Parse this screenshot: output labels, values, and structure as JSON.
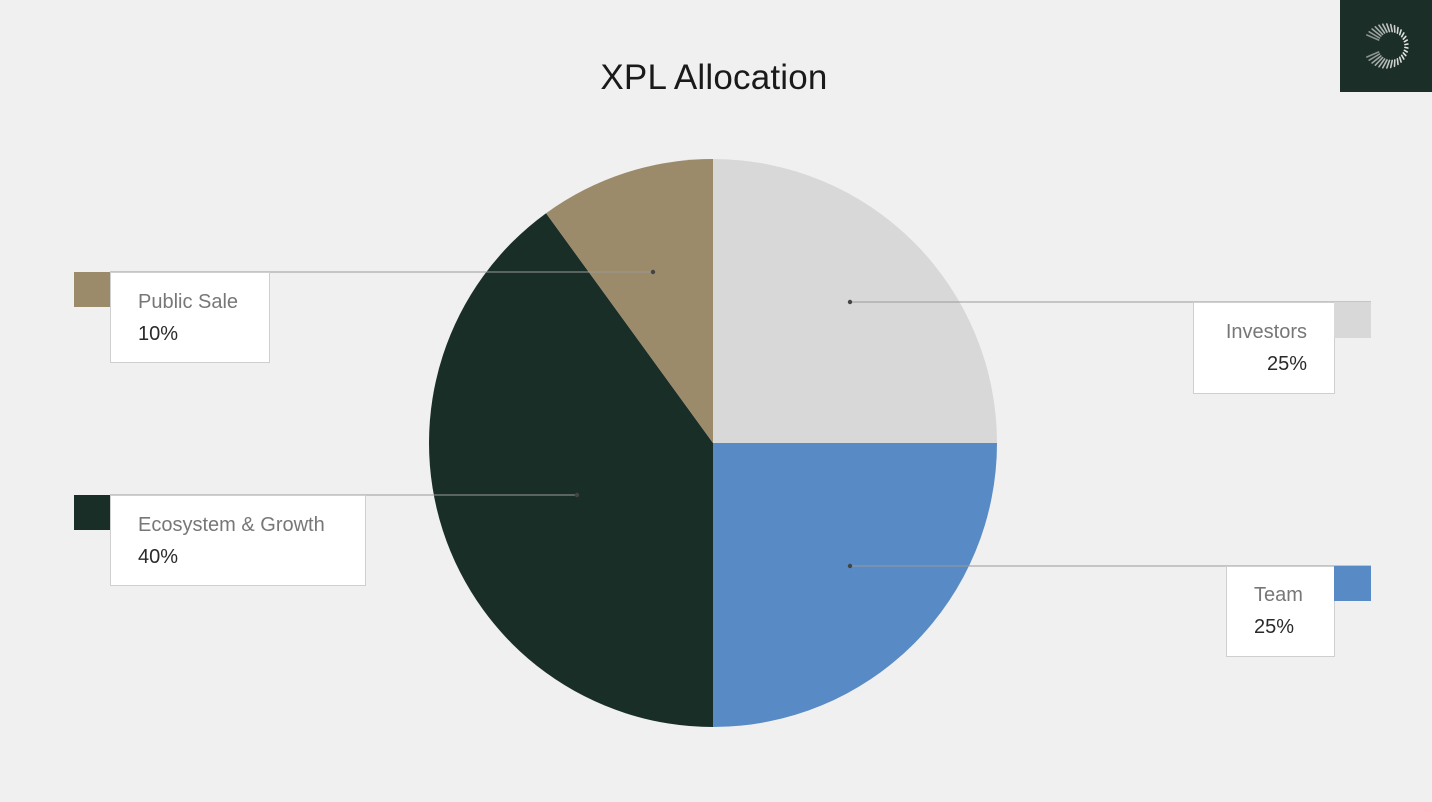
{
  "title": "XPL Allocation",
  "logo": {
    "icon": "crescent-ring-logo-icon",
    "background": "#1b2e27"
  },
  "colors": {
    "background": "#f0f0f0",
    "public_sale": "#9c8b6b",
    "investors": "#d8d8d8",
    "team": "#588bc5",
    "ecosystem_growth": "#1a2e28"
  },
  "legend": [
    {
      "label": "Public Sale",
      "value": "10%",
      "color": "#9c8b6b",
      "side": "left"
    },
    {
      "label": "Investors",
      "value": "25%",
      "color": "#d8d8d8",
      "side": "right"
    },
    {
      "label": "Team",
      "value": "25%",
      "color": "#588bc5",
      "side": "right"
    },
    {
      "label": "Ecosystem & Growth",
      "value": "40%",
      "color": "#1a2e28",
      "side": "left"
    }
  ],
  "chart_data": {
    "type": "pie",
    "title": "XPL Allocation",
    "categories": [
      "Investors",
      "Team",
      "Ecosystem & Growth",
      "Public Sale"
    ],
    "values": [
      25,
      25,
      40,
      10
    ],
    "unit": "%",
    "colors": [
      "#d8d8d8",
      "#588bc5",
      "#1a2e28",
      "#9c8b6b"
    ],
    "start_angle_deg": 0,
    "direction": "clockwise",
    "legend_position": "callouts left and right of pie"
  }
}
